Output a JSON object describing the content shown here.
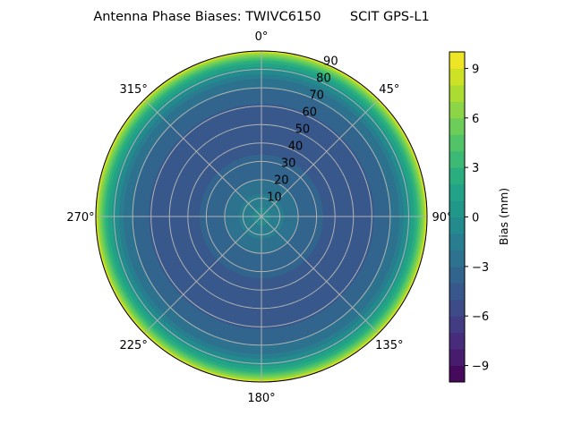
{
  "chart_data": {
    "type": "polar-contour",
    "title": "Antenna Phase Biases: TWIVC6150       SCIT GPS-L1",
    "colormap": "viridis",
    "levels": {
      "min": -10,
      "max": 10,
      "step": 1
    },
    "theta_direction": "clockwise",
    "theta_zero": "north",
    "theta_ticks": [
      "0°",
      "45°",
      "90°",
      "135°",
      "180°",
      "225°",
      "270°",
      "315°"
    ],
    "r_ticks": [
      "10",
      "20",
      "30",
      "40",
      "50",
      "60",
      "70",
      "80",
      "90"
    ],
    "r_range": [
      0,
      90
    ],
    "grid": true,
    "radial_profile": {
      "zenith_deg": [
        0,
        5,
        10,
        15,
        20,
        30,
        40,
        50,
        60,
        70,
        75,
        80,
        85,
        88,
        90
      ],
      "bias_mm": [
        -0.5,
        -1,
        -1.5,
        -2.5,
        -3,
        -3.8,
        -4.3,
        -4.5,
        -4.2,
        -3,
        -2,
        0,
        3,
        6,
        9
      ]
    },
    "colorbar": {
      "label": "Bias (mm)",
      "range": [
        -10,
        10
      ],
      "ticks": [
        "−9",
        "−6",
        "−3",
        "0",
        "3",
        "6",
        "9"
      ],
      "tick_values": [
        -9,
        -6,
        -3,
        0,
        3,
        6,
        9
      ]
    }
  }
}
